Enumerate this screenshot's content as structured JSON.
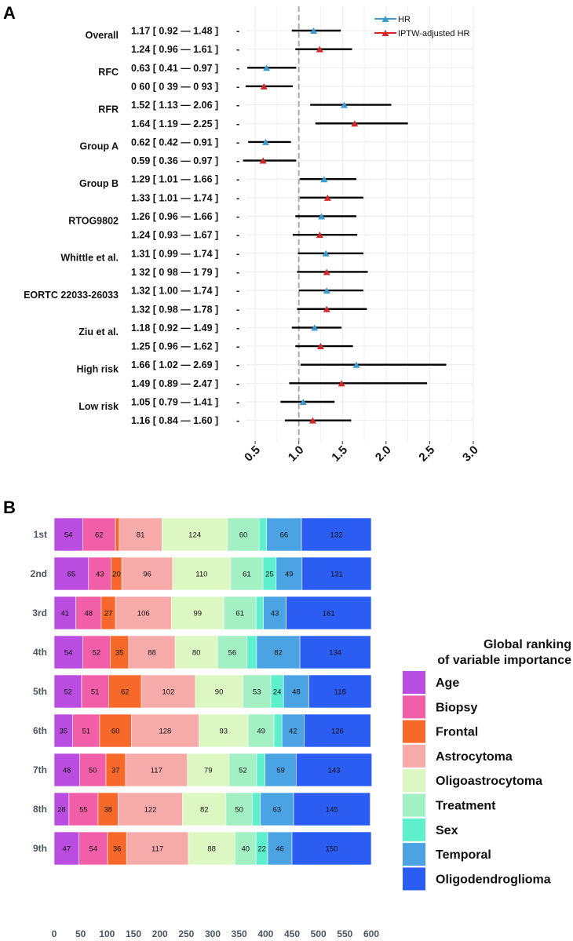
{
  "panel_a_label": "A",
  "panel_b_label": "B",
  "chart_data": [
    {
      "type": "forest",
      "xlim": [
        0.4,
        3.0
      ],
      "reference_line": 1.0,
      "xticks": [
        "0.5",
        "1.0",
        "1.5",
        "2.0",
        "2.5",
        "3.0"
      ],
      "xtick_values": [
        0.5,
        1.0,
        1.5,
        2.0,
        2.5,
        3.0
      ],
      "legend": [
        {
          "name": "HR",
          "color": "#3a9bd1"
        },
        {
          "name": "IPTW-adjusted HR",
          "color": "#d62728"
        }
      ],
      "groups": [
        {
          "label": "Overall",
          "rows": [
            {
              "text": "1.17  [ 0.92 — 1.48 ]",
              "series": "HR",
              "est": 1.17,
              "lo": 0.92,
              "hi": 1.48
            },
            {
              "text": "1.24  [ 0.96 — 1.61 ]",
              "series": "IPTW-adjusted HR",
              "est": 1.24,
              "lo": 0.96,
              "hi": 1.61
            }
          ]
        },
        {
          "label": "RFC",
          "rows": [
            {
              "text": "0.63  [ 0.41 — 0.97 ]",
              "series": "HR",
              "est": 0.63,
              "lo": 0.41,
              "hi": 0.97
            },
            {
              "text": "0 60  [ 0 39 — 0 93 ]",
              "series": "IPTW-adjusted HR",
              "est": 0.6,
              "lo": 0.39,
              "hi": 0.93
            }
          ]
        },
        {
          "label": "RFR",
          "rows": [
            {
              "text": "1.52  [ 1.13 — 2.06 ]",
              "series": "HR",
              "est": 1.52,
              "lo": 1.13,
              "hi": 2.06
            },
            {
              "text": "1.64  [ 1.19 — 2.25 ]",
              "series": "IPTW-adjusted HR",
              "est": 1.64,
              "lo": 1.19,
              "hi": 2.25
            }
          ]
        },
        {
          "label": "Group A",
          "rows": [
            {
              "text": "0.62  [ 0.42 — 0.91 ]",
              "series": "HR",
              "est": 0.62,
              "lo": 0.42,
              "hi": 0.91
            },
            {
              "text": "0.59  [ 0.36 — 0.97 ]",
              "series": "IPTW-adjusted HR",
              "est": 0.59,
              "lo": 0.36,
              "hi": 0.97
            }
          ]
        },
        {
          "label": "Group B",
          "rows": [
            {
              "text": "1.29  [ 1.01 — 1.66 ]",
              "series": "HR",
              "est": 1.29,
              "lo": 1.01,
              "hi": 1.66
            },
            {
              "text": "1.33  [ 1.01 — 1.74 ]",
              "series": "IPTW-adjusted HR",
              "est": 1.33,
              "lo": 1.01,
              "hi": 1.74
            }
          ]
        },
        {
          "label": "RTOG9802",
          "rows": [
            {
              "text": "1.26  [ 0.96 — 1.66 ]",
              "series": "HR",
              "est": 1.26,
              "lo": 0.96,
              "hi": 1.66
            },
            {
              "text": "1.24  [ 0.93 — 1.67 ]",
              "series": "IPTW-adjusted HR",
              "est": 1.24,
              "lo": 0.93,
              "hi": 1.67
            }
          ]
        },
        {
          "label": "Whittle et al.",
          "rows": [
            {
              "text": "1.31  [ 0.99 — 1.74 ]",
              "series": "HR",
              "est": 1.31,
              "lo": 0.99,
              "hi": 1.74
            },
            {
              "text": "1 32  [ 0 98 — 1 79 ]",
              "series": "IPTW-adjusted HR",
              "est": 1.32,
              "lo": 0.98,
              "hi": 1.79
            }
          ]
        },
        {
          "label": "EORTC 22033-26033",
          "rows": [
            {
              "text": "1.32  [ 1.00 — 1.74 ]",
              "series": "HR",
              "est": 1.32,
              "lo": 1.0,
              "hi": 1.74
            },
            {
              "text": "1.32  [ 0.98 — 1.78 ]",
              "series": "IPTW-adjusted HR",
              "est": 1.32,
              "lo": 0.98,
              "hi": 1.78
            }
          ]
        },
        {
          "label": "Ziu et al.",
          "rows": [
            {
              "text": "1.18  [ 0.92 — 1.49 ]",
              "series": "HR",
              "est": 1.18,
              "lo": 0.92,
              "hi": 1.49
            },
            {
              "text": "1.25  [ 0.96 — 1.62 ]",
              "series": "IPTW-adjusted HR",
              "est": 1.25,
              "lo": 0.96,
              "hi": 1.62
            }
          ]
        },
        {
          "label": "High risk",
          "rows": [
            {
              "text": "1.66  [ 1.02 — 2.69 ]",
              "series": "HR",
              "est": 1.66,
              "lo": 1.02,
              "hi": 2.69
            },
            {
              "text": "1.49  [ 0.89 — 2.47 ]",
              "series": "IPTW-adjusted HR",
              "est": 1.49,
              "lo": 0.89,
              "hi": 2.47
            }
          ]
        },
        {
          "label": "Low risk",
          "rows": [
            {
              "text": "1.05  [ 0.79 — 1.41 ]",
              "series": "HR",
              "est": 1.05,
              "lo": 0.79,
              "hi": 1.41
            },
            {
              "text": "1.16  [ 0.84 — 1.60 ]",
              "series": "IPTW-adjusted HR",
              "est": 1.16,
              "lo": 0.84,
              "hi": 1.6
            }
          ]
        }
      ]
    },
    {
      "type": "bar",
      "orientation": "horizontal",
      "stacked": true,
      "categories": [
        "1st",
        "2nd",
        "3rd",
        "4th",
        "5th",
        "6th",
        "7th",
        "8th",
        "9th"
      ],
      "xlim": [
        0,
        600
      ],
      "xticks": [
        "0",
        "50",
        "100",
        "150",
        "200",
        "250",
        "300",
        "350",
        "400",
        "450",
        "500",
        "550",
        "600"
      ],
      "legend_title": [
        "Global ranking",
        "of variable importance"
      ],
      "series": [
        {
          "name": "Age",
          "color": "#b94de0",
          "values": [
            54,
            65,
            41,
            54,
            52,
            35,
            48,
            28,
            47
          ]
        },
        {
          "name": "Biopsy",
          "color": "#f25fa9",
          "values": [
            62,
            43,
            48,
            52,
            51,
            51,
            50,
            55,
            54
          ]
        },
        {
          "name": "Frontal",
          "color": "#f7692a",
          "values": [
            7,
            20,
            27,
            35,
            62,
            60,
            37,
            38,
            36
          ]
        },
        {
          "name": "Astrocytoma",
          "color": "#f7aaaa",
          "values": [
            81,
            96,
            106,
            88,
            102,
            128,
            117,
            122,
            117
          ]
        },
        {
          "name": "Oligoastrocytoma",
          "color": "#dcf7c2",
          "values": [
            124,
            110,
            99,
            80,
            90,
            93,
            79,
            82,
            88
          ]
        },
        {
          "name": "Treatment",
          "color": "#a2f0c3",
          "values": [
            60,
            61,
            61,
            56,
            53,
            49,
            52,
            50,
            40
          ]
        },
        {
          "name": "Sex",
          "color": "#5ef0cd",
          "values": [
            14,
            25,
            14,
            18,
            24,
            15,
            16,
            15,
            22
          ]
        },
        {
          "name": "Temporal",
          "color": "#4ba3e3",
          "values": [
            66,
            49,
            43,
            82,
            48,
            42,
            59,
            63,
            46
          ]
        },
        {
          "name": "Oligodendroglioma",
          "color": "#2b5df2",
          "values": [
            132,
            131,
            161,
            134,
            118,
            126,
            143,
            145,
            150
          ]
        }
      ],
      "labels": [
        [
          "54",
          "62",
          "",
          "81",
          "124",
          "60",
          "",
          "66",
          "132"
        ],
        [
          "65",
          "43",
          "20",
          "96",
          "110",
          "61",
          "25",
          "49",
          "131"
        ],
        [
          "41",
          "48",
          "27",
          "106",
          "99",
          "61",
          "",
          "43",
          "161"
        ],
        [
          "54",
          "52",
          "35",
          "88",
          "80",
          "56",
          "",
          "82",
          "134"
        ],
        [
          "52",
          "51",
          "62",
          "102",
          "90",
          "53",
          "24",
          "48",
          "118"
        ],
        [
          "35",
          "51",
          "60",
          "128",
          "93",
          "49",
          "",
          "42",
          "126"
        ],
        [
          "48",
          "50",
          "37",
          "117",
          "79",
          "52",
          "",
          "59",
          "143"
        ],
        [
          "28",
          "55",
          "38",
          "122",
          "82",
          "50",
          "",
          "63",
          "145"
        ],
        [
          "47",
          "54",
          "36",
          "117",
          "88",
          "40",
          "22",
          "46",
          "150"
        ]
      ]
    }
  ]
}
